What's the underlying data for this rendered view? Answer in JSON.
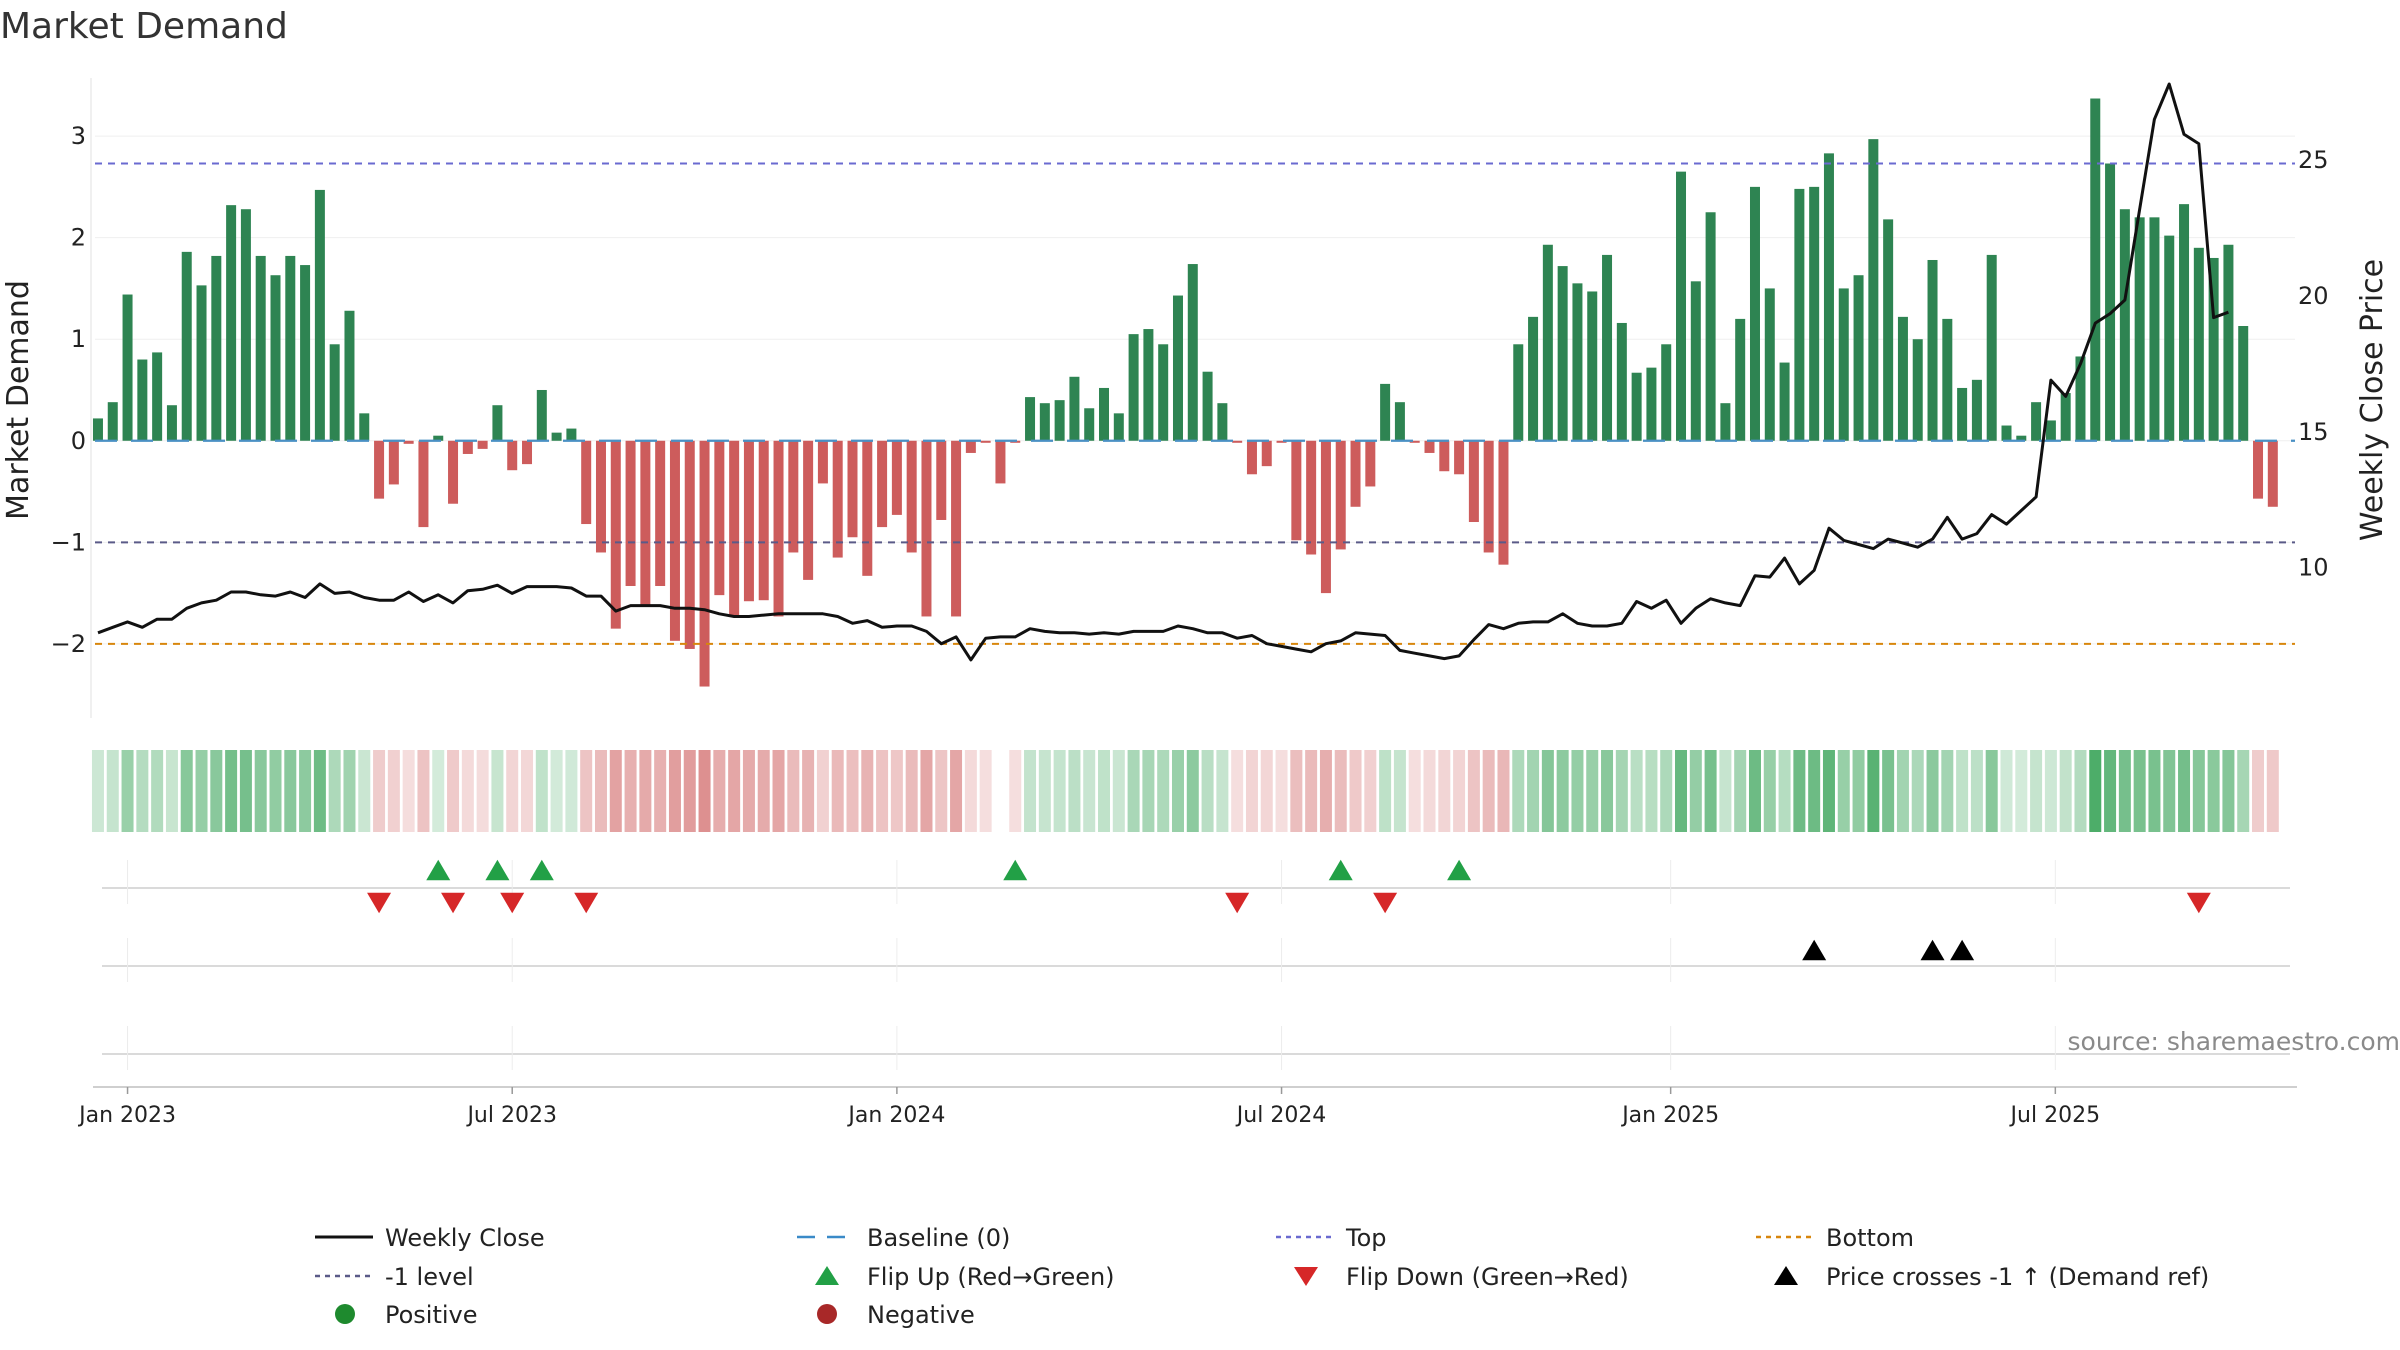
{
  "chart_data": {
    "type": "bar",
    "title": "Market Demand",
    "ylabel": "Market Demand",
    "y2label": "Weekly Close Price",
    "ylim": [
      -2.72,
      3.7
    ],
    "y2lim": [
      4.5,
      28.5
    ],
    "yticks": [
      3,
      2,
      1,
      0,
      -1,
      -2
    ],
    "ytick_labels": [
      "3",
      "2",
      "1",
      "0",
      "−1",
      "−2"
    ],
    "y2ticks": [
      25,
      20,
      15,
      10
    ],
    "y2tick_labels": [
      "25",
      "20",
      "15",
      "10"
    ],
    "x_range_weeks": [
      -2.2,
      146.5
    ],
    "xticks": [
      {
        "week": 0,
        "label": "Jan 2023"
      },
      {
        "week": 26,
        "label": "Jul 2023"
      },
      {
        "week": 52,
        "label": "Jan 2024"
      },
      {
        "week": 78,
        "label": "Jul 2024"
      },
      {
        "week": 104.3,
        "label": "Jan 2025"
      },
      {
        "week": 130.3,
        "label": "Jul 2025"
      }
    ],
    "reference_lines": [
      {
        "name": "Top",
        "value": 2.73,
        "color": "#6a6ad0",
        "dash": "7,6"
      },
      {
        "name": "-1 level",
        "value": -1,
        "color": "#5a5a88",
        "dash": "7,6"
      },
      {
        "name": "Bottom",
        "value": -2,
        "color": "#d8860c",
        "dash": "7,6"
      },
      {
        "name": "Baseline (0)",
        "value": 0,
        "color": "#4a90c4",
        "dash": "22,14"
      }
    ],
    "series": [
      {
        "name": "Market Demand",
        "kind": "bar",
        "start_week": -2,
        "values": [
          0.22,
          0.38,
          1.44,
          0.8,
          0.87,
          0.35,
          1.86,
          1.53,
          1.82,
          2.32,
          2.28,
          1.82,
          1.63,
          1.82,
          1.73,
          2.47,
          0.95,
          1.28,
          0.27,
          -0.57,
          -0.43,
          -0.03,
          -0.85,
          0.05,
          -0.62,
          -0.13,
          -0.08,
          0.35,
          -0.29,
          -0.23,
          0.5,
          0.08,
          0.12,
          -0.82,
          -1.1,
          -1.85,
          -1.43,
          -1.62,
          -1.43,
          -1.97,
          -2.05,
          -2.42,
          -1.52,
          -1.72,
          -1.58,
          -1.57,
          -1.73,
          -1.1,
          -1.37,
          -0.42,
          -1.15,
          -0.95,
          -1.33,
          -0.85,
          -0.73,
          -1.1,
          -1.73,
          -0.78,
          -1.73,
          -0.12,
          -0.02,
          -0.42,
          -0.02,
          0.43,
          0.37,
          0.4,
          0.63,
          0.32,
          0.52,
          0.27,
          1.05,
          1.1,
          0.95,
          1.43,
          1.74,
          0.68,
          0.37,
          -0.02,
          -0.33,
          -0.25,
          -0.02,
          -0.98,
          -1.12,
          -1.5,
          -1.07,
          -0.65,
          -0.45,
          0.56,
          0.38,
          -0.02,
          -0.12,
          -0.3,
          -0.33,
          -0.8,
          -1.1,
          -1.22,
          0.95,
          1.22,
          1.93,
          1.72,
          1.55,
          1.47,
          1.83,
          1.16,
          0.67,
          0.72,
          0.95,
          2.65,
          1.57,
          2.25,
          0.37,
          1.2,
          2.5,
          1.5,
          0.77,
          2.48,
          2.5,
          2.83,
          1.5,
          1.63,
          2.97,
          2.18,
          1.22,
          1.0,
          1.78,
          1.2,
          0.52,
          0.6,
          1.83,
          0.15,
          0.05,
          0.38,
          0.2,
          0.47,
          0.83,
          3.37,
          2.73,
          2.28,
          2.2,
          2.2,
          2.02,
          2.33,
          1.9,
          1.8,
          1.93,
          1.13,
          -0.57,
          -0.65
        ]
      },
      {
        "name": "Weekly Close",
        "kind": "line",
        "start_week": -2,
        "values": [
          7.6,
          7.8,
          8.0,
          7.8,
          8.1,
          8.1,
          8.5,
          8.7,
          8.8,
          9.1,
          9.1,
          9.0,
          8.95,
          9.1,
          8.9,
          9.4,
          9.05,
          9.1,
          8.9,
          8.8,
          8.8,
          9.1,
          8.75,
          9.0,
          8.7,
          9.15,
          9.2,
          9.35,
          9.05,
          9.3,
          9.3,
          9.3,
          9.25,
          8.95,
          8.95,
          8.4,
          8.6,
          8.6,
          8.6,
          8.5,
          8.5,
          8.45,
          8.3,
          8.2,
          8.2,
          8.25,
          8.3,
          8.3,
          8.3,
          8.3,
          8.2,
          7.95,
          8.05,
          7.8,
          7.85,
          7.85,
          7.65,
          7.2,
          7.45,
          6.6,
          7.4,
          7.45,
          7.45,
          7.75,
          7.65,
          7.6,
          7.6,
          7.55,
          7.6,
          7.55,
          7.65,
          7.65,
          7.65,
          7.85,
          7.75,
          7.6,
          7.6,
          7.4,
          7.5,
          7.2,
          7.1,
          7.0,
          6.9,
          7.2,
          7.3,
          7.6,
          7.55,
          7.5,
          6.95,
          6.85,
          6.75,
          6.65,
          6.75,
          7.35,
          7.9,
          7.75,
          7.95,
          8.0,
          8.0,
          8.3,
          7.95,
          7.85,
          7.85,
          7.95,
          8.75,
          8.5,
          8.8,
          7.95,
          8.5,
          8.85,
          8.7,
          8.6,
          9.7,
          9.65,
          10.35,
          9.4,
          9.9,
          11.45,
          11.0,
          10.85,
          10.7,
          11.05,
          10.9,
          10.75,
          11.05,
          11.85,
          11.05,
          11.25,
          11.95,
          11.6,
          12.1,
          12.6,
          16.9,
          16.3,
          17.5,
          19.0,
          19.35,
          19.85,
          23.2,
          26.5,
          27.8,
          25.95,
          25.6,
          19.2,
          19.4
        ]
      }
    ],
    "heatmap": {
      "name": "Demand intensity strip",
      "start_week": -2,
      "gap_weeks": [
        59
      ]
    },
    "markers": {
      "flip_up_weeks": [
        21,
        25,
        28,
        60,
        82,
        90
      ],
      "flip_down_weeks": [
        17,
        22,
        26,
        31,
        75,
        85,
        140
      ],
      "price_cross_weeks": [
        114,
        122,
        124
      ]
    },
    "legend": [
      {
        "label": "Weekly Close",
        "key": "line-solid",
        "color": "#111111"
      },
      {
        "label": "Baseline (0)",
        "key": "line-dashed",
        "color": "#3a8ac8"
      },
      {
        "label": "Top",
        "key": "line-dotted",
        "color": "#6a6ad0"
      },
      {
        "label": "Bottom",
        "key": "line-dotted",
        "color": "#d8860c"
      },
      {
        "label": "-1 level",
        "key": "line-dotted",
        "color": "#5a5a88"
      },
      {
        "label": "Flip Up (Red→Green)",
        "key": "triangle-up",
        "color": "#22a046"
      },
      {
        "label": "Flip Down (Green→Red)",
        "key": "triangle-down",
        "color": "#d62728"
      },
      {
        "label": "Price crosses -1 ↑ (Demand ref)",
        "key": "triangle-up",
        "color": "#000000"
      },
      {
        "label": "Positive",
        "key": "circle",
        "color": "#1e8a2e"
      },
      {
        "label": "Negative",
        "key": "circle",
        "color": "#a82828"
      }
    ],
    "source": "source: sharemaestro.com",
    "colors": {
      "positive_bar": "#2e8452",
      "negative_bar": "#cd5c5c",
      "strip_pos": "#2e9e4f",
      "strip_neg": "#cd5c5c",
      "flip_up": "#22a046",
      "flip_down": "#d62728",
      "price_cross": "#000000"
    }
  }
}
